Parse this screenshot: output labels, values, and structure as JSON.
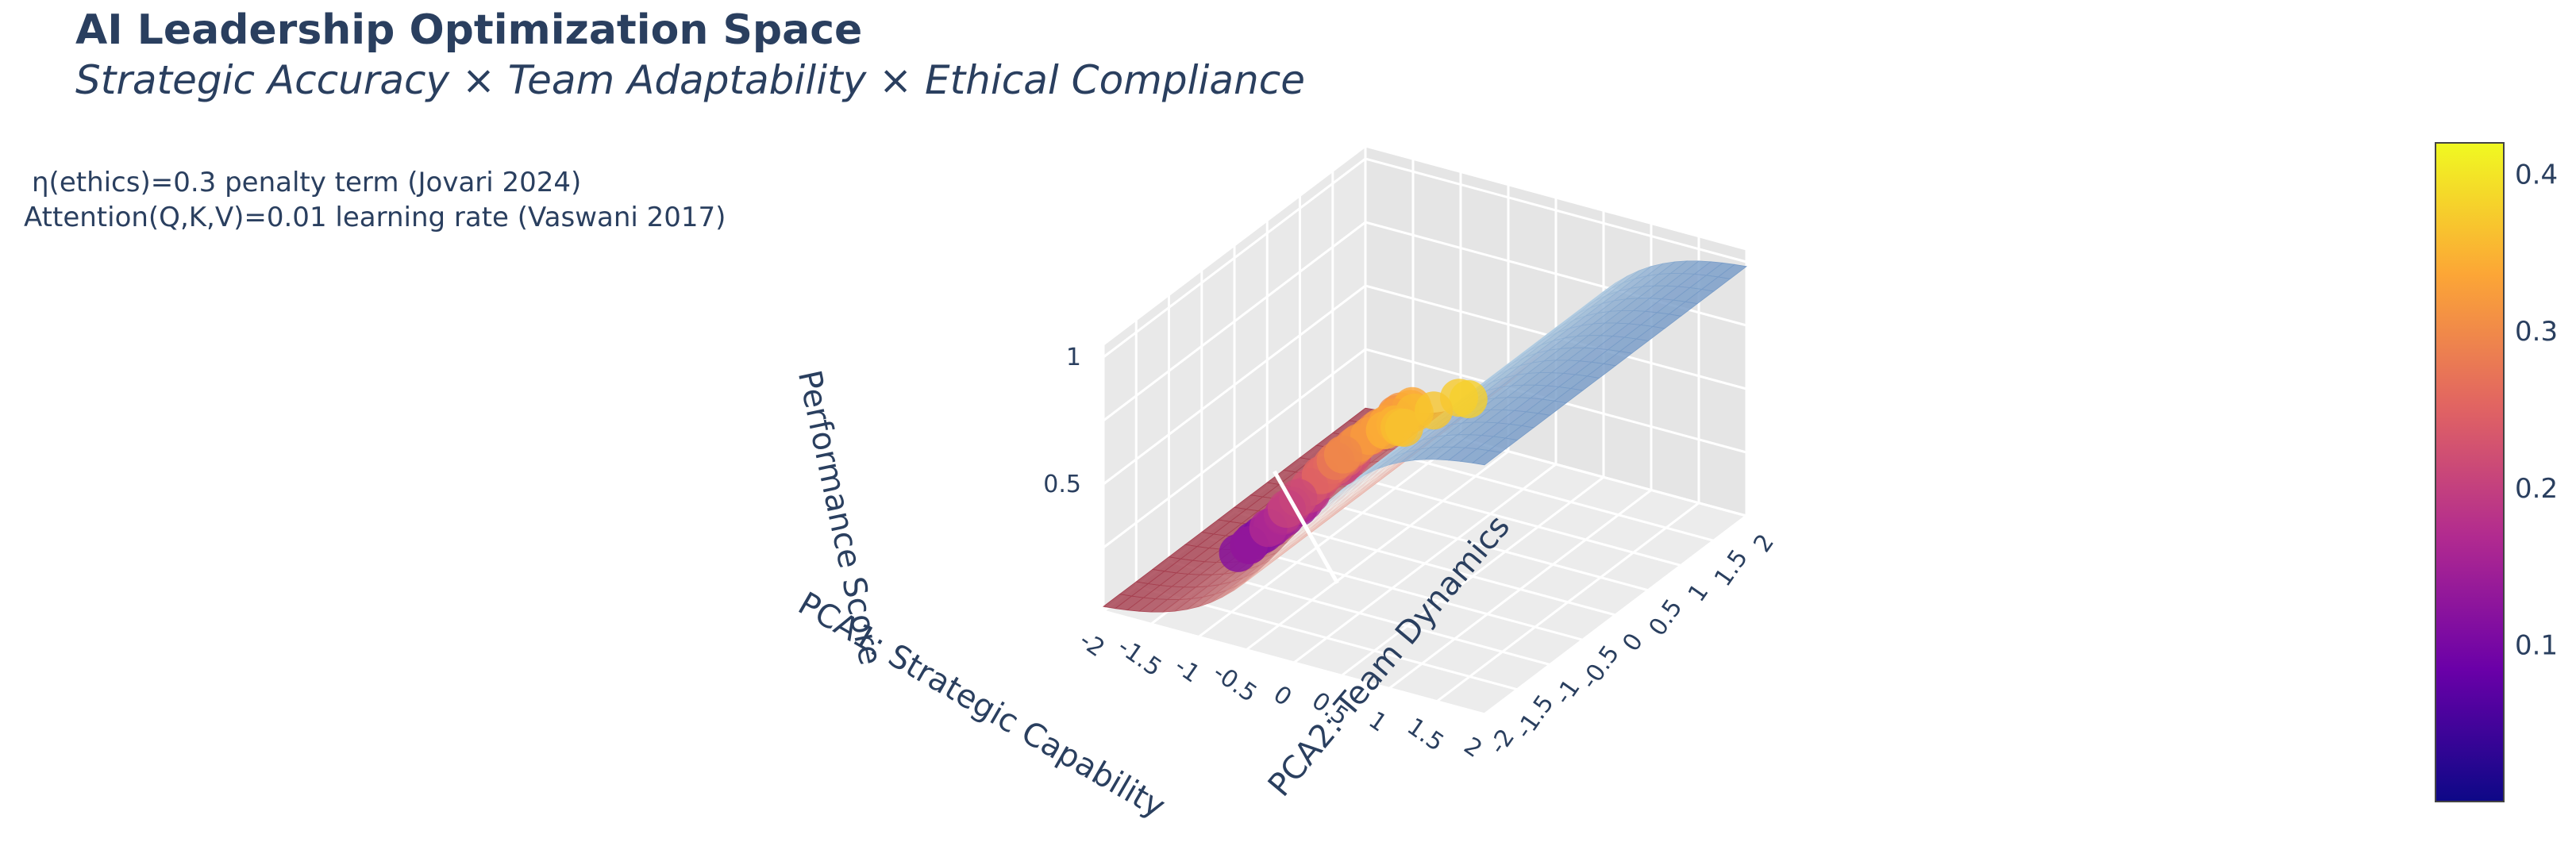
{
  "header": {
    "title": "AI Leadership Optimization Space",
    "subtitle": "Strategic Accuracy × Team Adaptability × Ethical Compliance"
  },
  "annotations": {
    "line1": "η(ethics)=0.3 penalty term (Jovari 2024)",
    "line2": "Attention(Q,K,V)=0.01 learning rate (Vaswani 2017)"
  },
  "chart_data": {
    "type": "surface",
    "title": "AI Leadership Optimization Space",
    "subtitle": "Strategic Accuracy × Team Adaptability × Ethical Compliance",
    "axes": {
      "x": {
        "label": "PCA1: Strategic Capability",
        "range": [
          -2,
          2
        ],
        "ticks": [
          "-2",
          "-1.5",
          "-1",
          "-0.5",
          "0",
          "0.5",
          "1",
          "1.5",
          "2"
        ]
      },
      "y": {
        "label": "PCA2: Team Dynamics",
        "range": [
          -2,
          2
        ],
        "ticks": [
          "-2",
          "-1.5",
          "-1",
          "-0.5",
          "0",
          "0.5",
          "1",
          "1.5",
          "2"
        ]
      },
      "z": {
        "label": "Performance Score",
        "range": [
          0,
          1
        ],
        "ticks": [
          "0.5",
          "1"
        ]
      }
    },
    "surface": {
      "function": "sigmoid",
      "values_at_x": {
        "x": [
          -2,
          -1,
          0,
          1,
          2
        ],
        "z": [
          0.02,
          0.12,
          0.5,
          0.88,
          0.98
        ]
      },
      "colorscale": [
        "#9e3346",
        "#e6a9a0",
        "#f5efe9",
        "#bcd5e6",
        "#7196c4"
      ]
    },
    "points": {
      "count_estimate": 60,
      "z_range": [
        0.2,
        0.95
      ],
      "colorscale": "Plasma"
    },
    "colorbar": {
      "range": [
        0.0,
        0.42
      ],
      "ticks": [
        "0.1",
        "0.2",
        "0.3",
        "0.4"
      ],
      "colors": [
        "#0d0887",
        "#6a00a8",
        "#b12a90",
        "#e16462",
        "#fca636",
        "#f0f921"
      ]
    },
    "grid": true,
    "legend": "none"
  }
}
